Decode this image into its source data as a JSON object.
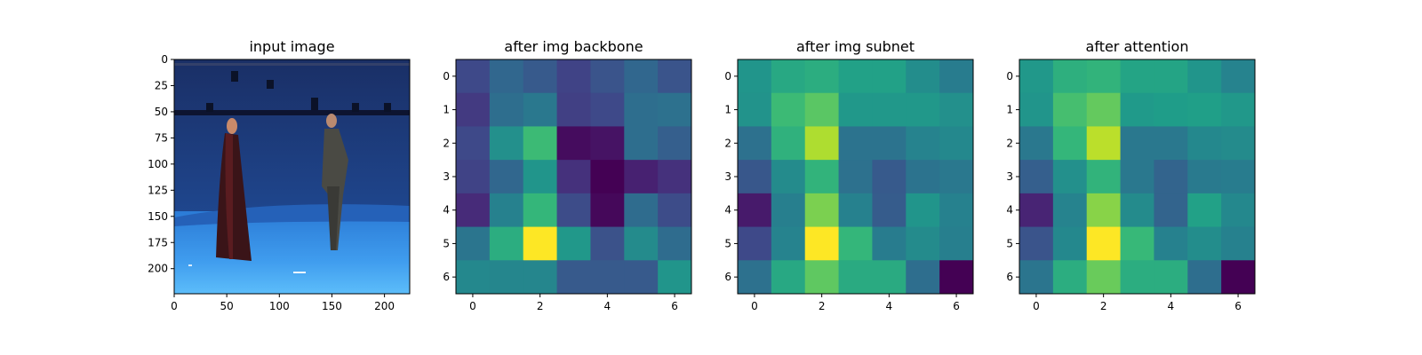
{
  "figure": {
    "background": "#ffffff",
    "colormap": "viridis"
  },
  "panels": [
    {
      "title": "input image",
      "image_description": "Blue studio stage photograph with two standing people",
      "xticks": [
        "0",
        "50",
        "100",
        "150",
        "200"
      ],
      "yticks": [
        "0",
        "25",
        "50",
        "75",
        "100",
        "125",
        "150",
        "175",
        "200"
      ],
      "extent": [
        224,
        224
      ]
    },
    {
      "title": "after img backbone",
      "xticks": [
        "0",
        "2",
        "4",
        "6"
      ],
      "yticks": [
        "0",
        "1",
        "2",
        "3",
        "4",
        "5",
        "6"
      ]
    },
    {
      "title": "after img subnet",
      "xticks": [
        "0",
        "2",
        "4",
        "6"
      ],
      "yticks": [
        "0",
        "1",
        "2",
        "3",
        "4",
        "5",
        "6"
      ]
    },
    {
      "title": "after attention",
      "xticks": [
        "0",
        "2",
        "4",
        "6"
      ],
      "yticks": [
        "0",
        "1",
        "2",
        "3",
        "4",
        "5",
        "6"
      ]
    }
  ],
  "chart_data": [
    {
      "type": "heatmap",
      "title": "after img backbone",
      "colormap": "viridis",
      "x": [
        0,
        1,
        2,
        3,
        4,
        5,
        6
      ],
      "y": [
        0,
        1,
        2,
        3,
        4,
        5,
        6
      ],
      "values": [
        [
          0.22,
          0.33,
          0.28,
          0.2,
          0.26,
          0.33,
          0.26
        ],
        [
          0.17,
          0.36,
          0.4,
          0.19,
          0.22,
          0.36,
          0.37
        ],
        [
          0.22,
          0.5,
          0.68,
          0.03,
          0.05,
          0.36,
          0.3
        ],
        [
          0.2,
          0.33,
          0.52,
          0.14,
          0.0,
          0.09,
          0.14
        ],
        [
          0.12,
          0.44,
          0.66,
          0.23,
          0.02,
          0.35,
          0.23
        ],
        [
          0.39,
          0.62,
          1.0,
          0.53,
          0.25,
          0.48,
          0.35
        ],
        [
          0.47,
          0.46,
          0.46,
          0.28,
          0.28,
          0.28,
          0.52
        ]
      ]
    },
    {
      "type": "heatmap",
      "title": "after img subnet",
      "colormap": "viridis",
      "x": [
        0,
        1,
        2,
        3,
        4,
        5,
        6
      ],
      "y": [
        0,
        1,
        2,
        3,
        4,
        5,
        6
      ],
      "values": [
        [
          0.52,
          0.6,
          0.62,
          0.57,
          0.57,
          0.49,
          0.42
        ],
        [
          0.51,
          0.68,
          0.74,
          0.53,
          0.53,
          0.53,
          0.5
        ],
        [
          0.37,
          0.64,
          0.88,
          0.38,
          0.38,
          0.45,
          0.47
        ],
        [
          0.27,
          0.48,
          0.65,
          0.37,
          0.28,
          0.38,
          0.4
        ],
        [
          0.07,
          0.43,
          0.8,
          0.44,
          0.29,
          0.52,
          0.44
        ],
        [
          0.22,
          0.45,
          1.0,
          0.66,
          0.42,
          0.48,
          0.43
        ],
        [
          0.37,
          0.6,
          0.75,
          0.61,
          0.61,
          0.36,
          0.0
        ]
      ]
    },
    {
      "type": "heatmap",
      "title": "after attention",
      "colormap": "viridis",
      "x": [
        0,
        1,
        2,
        3,
        4,
        5,
        6
      ],
      "y": [
        0,
        1,
        2,
        3,
        4,
        5,
        6
      ],
      "values": [
        [
          0.53,
          0.63,
          0.65,
          0.58,
          0.58,
          0.52,
          0.45
        ],
        [
          0.52,
          0.7,
          0.76,
          0.54,
          0.55,
          0.56,
          0.53
        ],
        [
          0.4,
          0.66,
          0.9,
          0.4,
          0.4,
          0.47,
          0.48
        ],
        [
          0.3,
          0.5,
          0.65,
          0.4,
          0.32,
          0.41,
          0.42
        ],
        [
          0.1,
          0.45,
          0.82,
          0.48,
          0.32,
          0.57,
          0.47
        ],
        [
          0.26,
          0.47,
          1.0,
          0.67,
          0.44,
          0.49,
          0.44
        ],
        [
          0.39,
          0.62,
          0.77,
          0.62,
          0.62,
          0.36,
          0.0
        ]
      ]
    }
  ]
}
